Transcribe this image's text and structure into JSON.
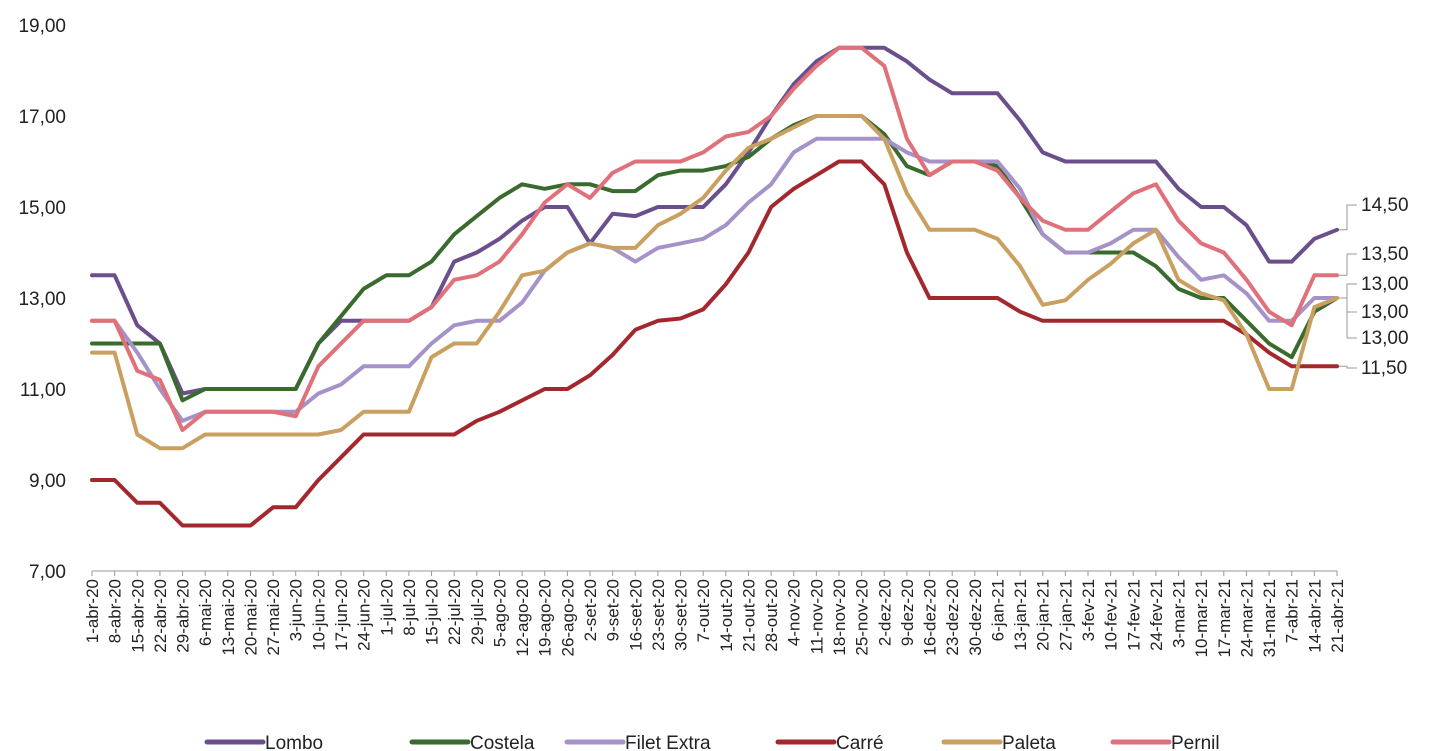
{
  "chart_data": {
    "type": "line",
    "title": "",
    "xlabel": "",
    "ylabel": "",
    "ylim": [
      7,
      19
    ],
    "yticks": [
      "7,00",
      "9,00",
      "11,00",
      "13,00",
      "15,00",
      "17,00",
      "19,00"
    ],
    "grid": false,
    "legend_position": "bottom",
    "categories": [
      "1-abr-20",
      "8-abr-20",
      "15-abr-20",
      "22-abr-20",
      "29-abr-20",
      "6-mai-20",
      "13-mai-20",
      "20-mai-20",
      "27-mai-20",
      "3-jun-20",
      "10-jun-20",
      "17-jun-20",
      "24-jun-20",
      "1-jul-20",
      "8-jul-20",
      "15-jul-20",
      "22-jul-20",
      "29-jul-20",
      "5-ago-20",
      "12-ago-20",
      "19-ago-20",
      "26-ago-20",
      "2-set-20",
      "9-set-20",
      "16-set-20",
      "23-set-20",
      "30-set-20",
      "7-out-20",
      "14-out-20",
      "21-out-20",
      "28-out-20",
      "4-nov-20",
      "11-nov-20",
      "18-nov-20",
      "25-nov-20",
      "2-dez-20",
      "9-dez-20",
      "16-dez-20",
      "23-dez-20",
      "30-dez-20",
      "6-jan-21",
      "13-jan-21",
      "20-jan-21",
      "27-jan-21",
      "3-fev-21",
      "10-fev-21",
      "17-fev-21",
      "24-fev-21",
      "3-mar-21",
      "10-mar-21",
      "17-mar-21",
      "24-mar-21",
      "31-mar-21",
      "7-abr-21",
      "14-abr-21",
      "21-abr-21"
    ],
    "series": [
      {
        "name": "Lombo",
        "color": "#6B4E8C",
        "values": [
          13.5,
          13.5,
          12.4,
          12,
          10.9,
          11,
          11,
          11,
          11,
          11,
          12,
          12.5,
          12.5,
          12.5,
          12.5,
          12.8,
          13.8,
          14,
          14.3,
          14.7,
          15,
          15,
          14.2,
          14.85,
          14.8,
          15,
          15,
          15,
          15.5,
          16.2,
          17,
          17.7,
          18.2,
          18.5,
          18.5,
          18.5,
          18.2,
          17.8,
          17.5,
          17.5,
          17.5,
          16.9,
          16.2,
          16,
          16,
          16,
          16,
          16,
          15.4,
          15,
          15,
          14.6,
          13.8,
          13.8,
          14.3,
          14.5
        ]
      },
      {
        "name": "Costela",
        "color": "#3A6B2E",
        "values": [
          12,
          12,
          12,
          12,
          10.75,
          11,
          11,
          11,
          11,
          11,
          12,
          12.6,
          13.2,
          13.5,
          13.5,
          13.8,
          14.4,
          14.8,
          15.2,
          15.5,
          15.4,
          15.5,
          15.5,
          15.35,
          15.35,
          15.7,
          15.8,
          15.8,
          15.9,
          16.1,
          16.5,
          16.8,
          17,
          17,
          17,
          16.6,
          15.9,
          15.7,
          16,
          16,
          15.9,
          15.2,
          14.4,
          14,
          14,
          14,
          14,
          13.7,
          13.2,
          13,
          13,
          12.5,
          12,
          11.7,
          12.7,
          13
        ]
      },
      {
        "name": "Filet Extra",
        "color": "#A592C8",
        "values": [
          12.5,
          12.5,
          11.8,
          11,
          10.3,
          10.5,
          10.5,
          10.5,
          10.5,
          10.5,
          10.9,
          11.1,
          11.5,
          11.5,
          11.5,
          12,
          12.4,
          12.5,
          12.5,
          12.9,
          13.6,
          14,
          14.2,
          14.1,
          13.8,
          14.1,
          14.2,
          14.3,
          14.6,
          15.1,
          15.5,
          16.2,
          16.5,
          16.5,
          16.5,
          16.5,
          16.2,
          16,
          16,
          16,
          16,
          15.4,
          14.4,
          14,
          14,
          14.2,
          14.5,
          14.5,
          13.9,
          13.4,
          13.5,
          13.1,
          12.5,
          12.5,
          13,
          13
        ]
      },
      {
        "name": "Carré",
        "color": "#A3282E",
        "values": [
          9,
          9,
          8.5,
          8.5,
          8,
          8,
          8,
          8,
          8.4,
          8.4,
          9,
          9.5,
          10,
          10,
          10,
          10,
          10,
          10.3,
          10.5,
          10.75,
          11,
          11,
          11.3,
          11.75,
          12.3,
          12.5,
          12.55,
          12.75,
          13.3,
          14,
          15,
          15.4,
          15.7,
          16,
          16,
          15.5,
          14,
          13,
          13,
          13,
          13,
          12.7,
          12.5,
          12.5,
          12.5,
          12.5,
          12.5,
          12.5,
          12.5,
          12.5,
          12.5,
          12.2,
          11.8,
          11.5,
          11.5,
          11.5
        ]
      },
      {
        "name": "Paleta",
        "color": "#C9A060",
        "values": [
          11.8,
          11.8,
          10,
          9.7,
          9.7,
          10,
          10,
          10,
          10,
          10,
          10,
          10.1,
          10.5,
          10.5,
          10.5,
          11.7,
          12,
          12,
          12.7,
          13.5,
          13.6,
          14,
          14.2,
          14.1,
          14.1,
          14.6,
          14.85,
          15.2,
          15.8,
          16.3,
          16.5,
          16.75,
          17,
          17,
          17,
          16.5,
          15.3,
          14.5,
          14.5,
          14.5,
          14.3,
          13.7,
          12.85,
          12.95,
          13.4,
          13.75,
          14.2,
          14.5,
          13.4,
          13.1,
          12.95,
          12.2,
          11,
          11,
          12.8,
          13
        ]
      },
      {
        "name": "Pernil",
        "color": "#E0707A",
        "values": [
          12.5,
          12.5,
          11.4,
          11.2,
          10.1,
          10.5,
          10.5,
          10.5,
          10.5,
          10.4,
          11.5,
          12,
          12.5,
          12.5,
          12.5,
          12.8,
          13.4,
          13.5,
          13.8,
          14.4,
          15.1,
          15.5,
          15.2,
          15.75,
          16,
          16,
          16,
          16.2,
          16.55,
          16.65,
          17,
          17.6,
          18.1,
          18.5,
          18.5,
          18.1,
          16.5,
          15.7,
          16,
          16,
          15.8,
          15.2,
          14.7,
          14.5,
          14.5,
          14.9,
          15.3,
          15.5,
          14.7,
          14.2,
          14,
          13.4,
          12.7,
          12.4,
          13.5,
          13.5
        ]
      }
    ],
    "end_labels": [
      "14,50",
      "13,50",
      "13,00",
      "13,00",
      "13,00",
      "11,50"
    ]
  }
}
